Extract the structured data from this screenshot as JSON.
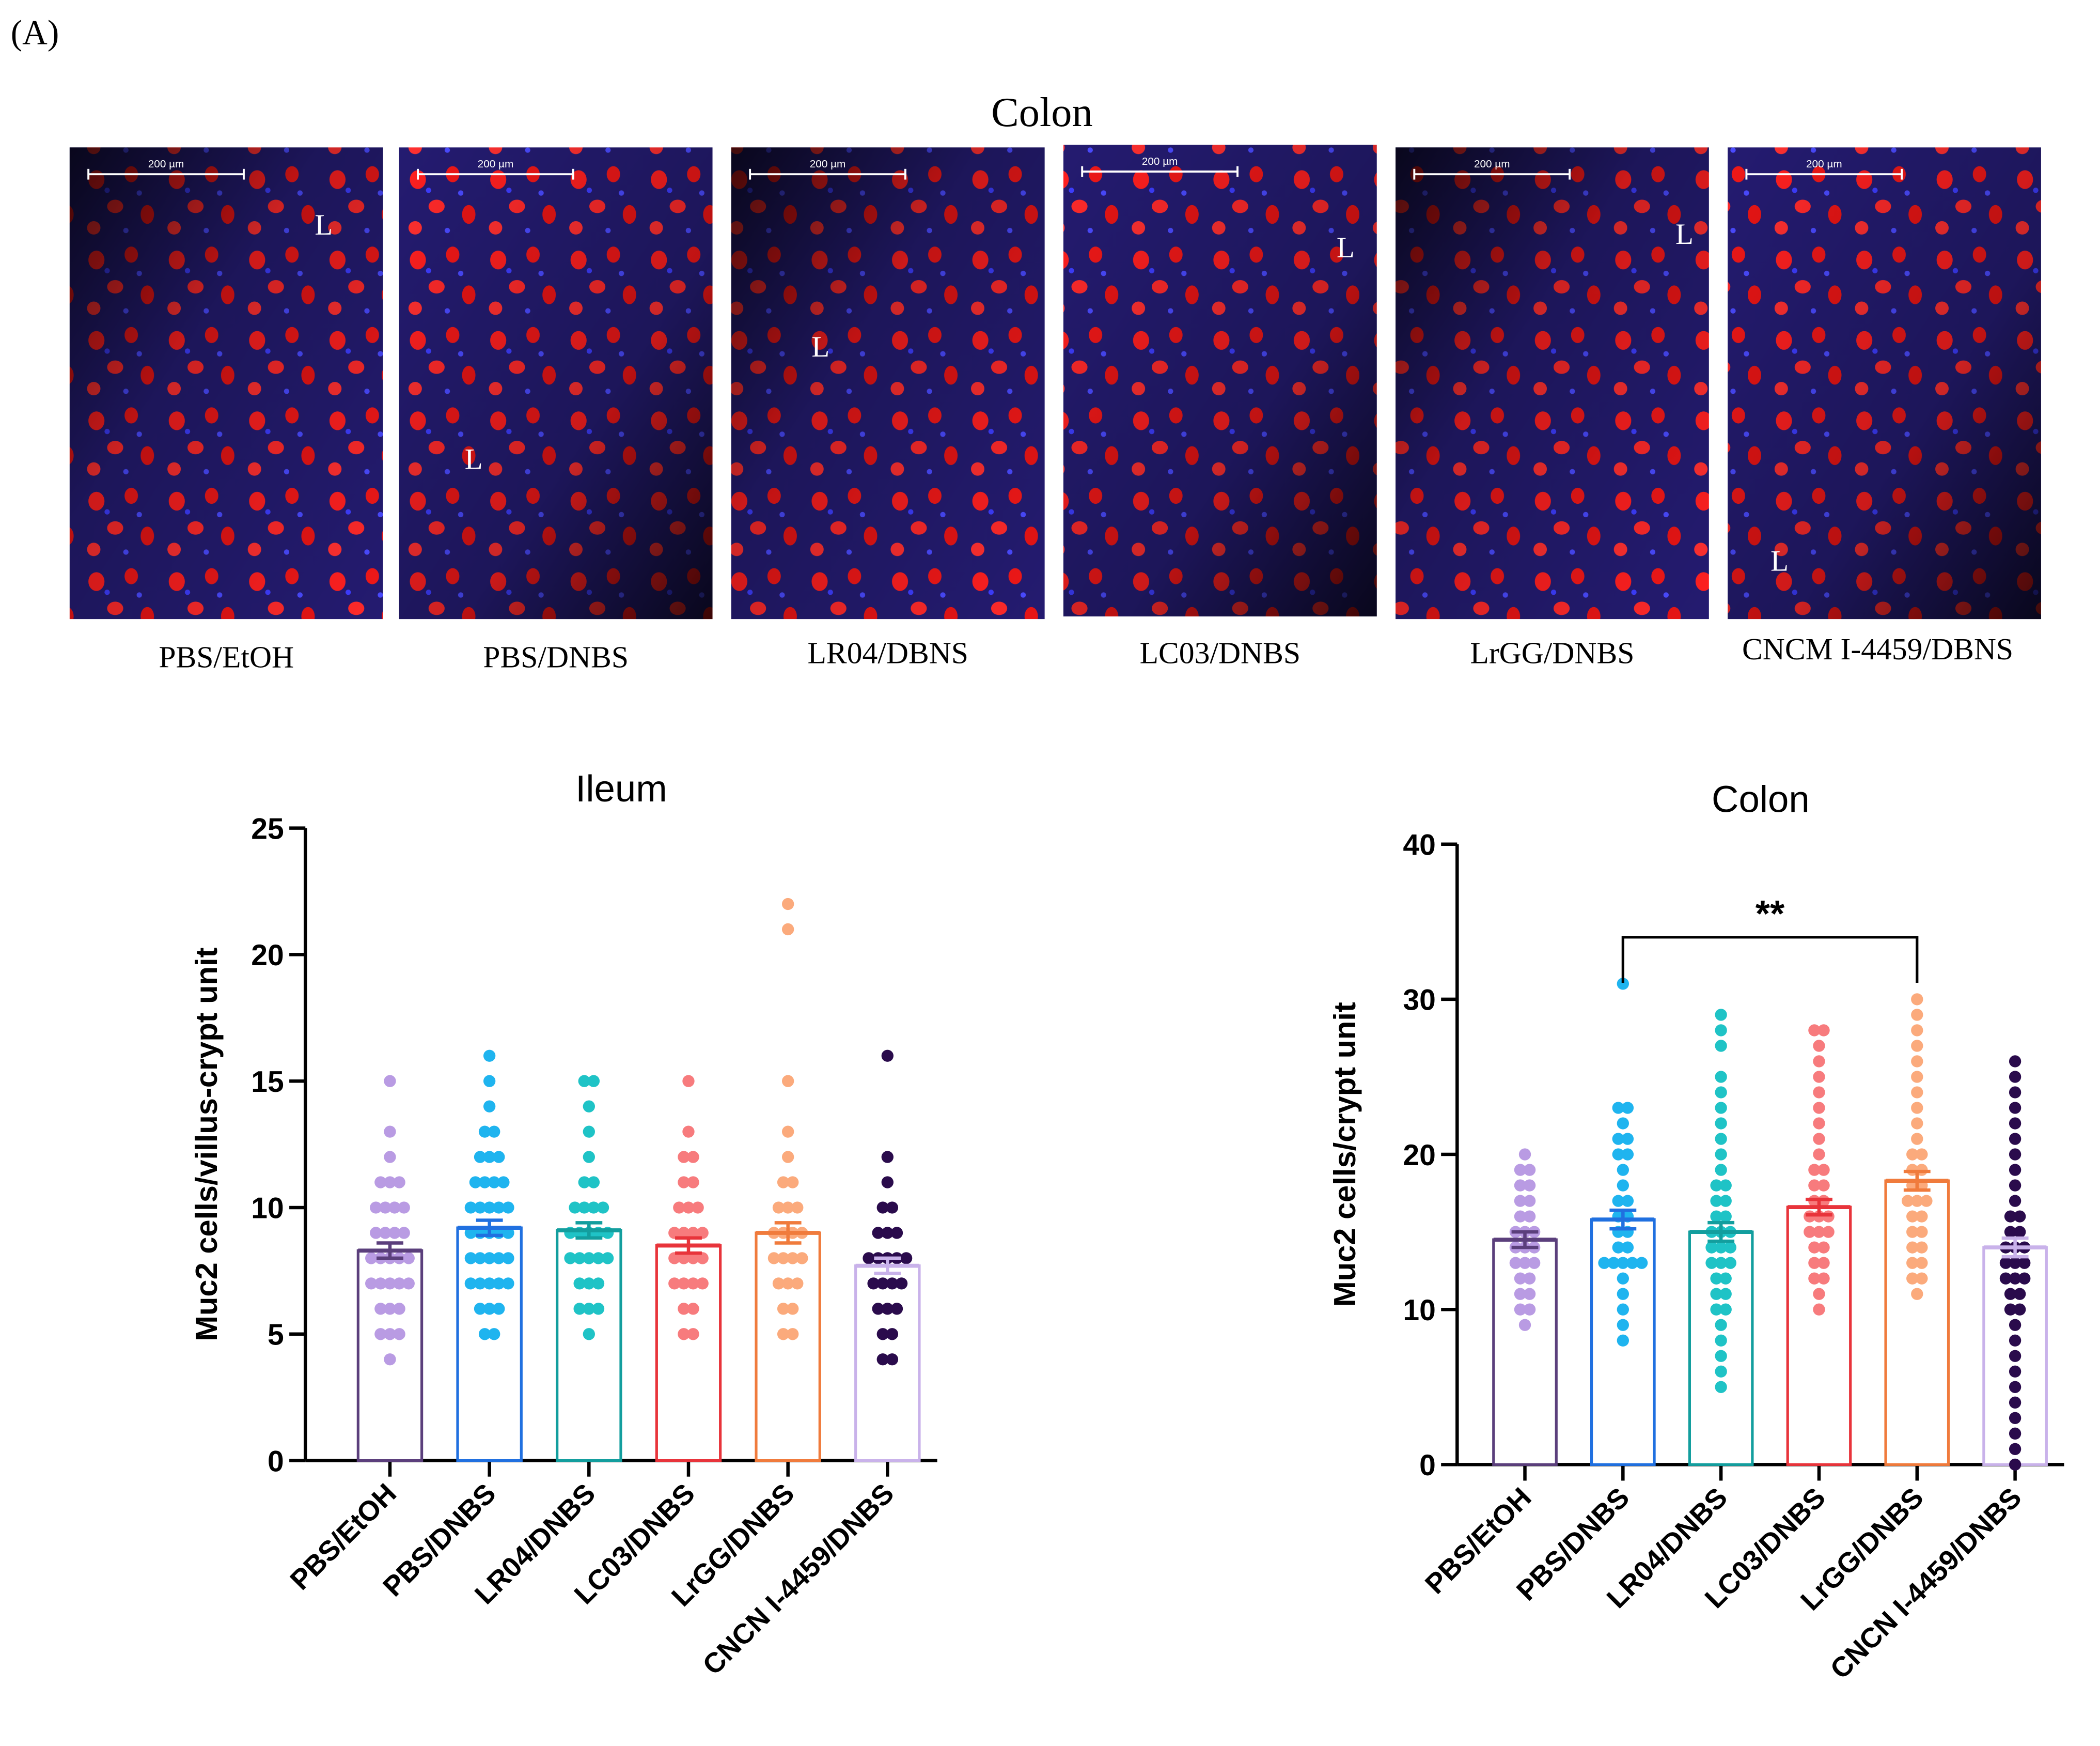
{
  "panel_label": "(A)",
  "micrographs": {
    "title": "Colon",
    "panels": [
      {
        "caption": "PBS/EtOH",
        "scale_bar": "200 µm",
        "lumen": "L"
      },
      {
        "caption": "PBS/DNBS",
        "scale_bar": "200 µm",
        "lumen": "L"
      },
      {
        "caption": "LR04/DBNS",
        "scale_bar": "200 µm",
        "lumen": "L"
      },
      {
        "caption": "LC03/DNBS",
        "scale_bar": "200 µm",
        "lumen": "L"
      },
      {
        "caption": "LrGG/DNBS",
        "scale_bar": "200 µm",
        "lumen": "L"
      },
      {
        "caption": "CNCM I-4459/DBNS",
        "scale_bar": "200 µm",
        "lumen": "L"
      }
    ]
  },
  "chart_data": [
    {
      "type": "bar",
      "title": "Ileum",
      "y_label": "Muc2 cells/villus-crypt unit",
      "categories": [
        "PBS/EtOH",
        "PBS/DNBS",
        "LR04/DNBS",
        "LC03/DNBS",
        "LrGG/DNBS",
        "CNCN I-4459/DNBS"
      ],
      "values": [
        8.3,
        9.2,
        9.1,
        8.5,
        9.0,
        7.7
      ],
      "errors": [
        0.3,
        0.3,
        0.3,
        0.3,
        0.4,
        0.3
      ],
      "points": [
        [
          4,
          5,
          5,
          5,
          6,
          6,
          6,
          7,
          7,
          7,
          7,
          7,
          8,
          8,
          8,
          8,
          8,
          9,
          9,
          9,
          9,
          10,
          10,
          10,
          10,
          11,
          11,
          11,
          12,
          13,
          15
        ],
        [
          5,
          5,
          6,
          6,
          6,
          7,
          7,
          7,
          7,
          7,
          8,
          8,
          8,
          8,
          8,
          9,
          9,
          9,
          9,
          9,
          10,
          10,
          10,
          10,
          10,
          11,
          11,
          11,
          11,
          12,
          12,
          12,
          13,
          13,
          14,
          15,
          16
        ],
        [
          5,
          6,
          6,
          6,
          7,
          7,
          7,
          8,
          8,
          8,
          8,
          8,
          9,
          9,
          9,
          9,
          9,
          10,
          10,
          10,
          10,
          11,
          11,
          12,
          13,
          14,
          15,
          15
        ],
        [
          5,
          5,
          6,
          6,
          7,
          7,
          7,
          7,
          8,
          8,
          8,
          8,
          9,
          9,
          9,
          9,
          10,
          10,
          10,
          11,
          11,
          12,
          12,
          13,
          15
        ],
        [
          5,
          5,
          6,
          6,
          7,
          7,
          7,
          8,
          8,
          8,
          8,
          9,
          9,
          9,
          9,
          10,
          10,
          10,
          11,
          11,
          12,
          13,
          15,
          21,
          22
        ],
        [
          4,
          4,
          5,
          5,
          6,
          6,
          6,
          7,
          7,
          7,
          7,
          8,
          8,
          8,
          8,
          8,
          9,
          9,
          9,
          10,
          10,
          11,
          12,
          16
        ]
      ],
      "point_colors": [
        "#b99be3",
        "#1fb4ef",
        "#1fc3c6",
        "#f77b7d",
        "#fbaa7c",
        "#2a0b4c"
      ],
      "edge_colors": [
        "#5b3f7c",
        "#2070e0",
        "#139e9e",
        "#e8343b",
        "#f07b3c",
        "#c9b2ea"
      ],
      "ylim": [
        0,
        25
      ],
      "yticks": [
        0,
        5,
        10,
        15,
        20,
        25
      ]
    },
    {
      "type": "bar",
      "title": "Colon",
      "y_label": "Muc2 cells/crypt unit",
      "categories": [
        "PBS/EtOH",
        "PBS/DNBS",
        "LR04/DNBS",
        "LC03/DNBS",
        "LrGG/DNBS",
        "CNCN I-4459/DNBS"
      ],
      "values": [
        14.5,
        15.8,
        15.0,
        16.6,
        18.3,
        14.0
      ],
      "errors": [
        0.5,
        0.6,
        0.6,
        0.5,
        0.6,
        0.6
      ],
      "points": [
        [
          9,
          10,
          10,
          11,
          11,
          12,
          12,
          13,
          13,
          13,
          14,
          14,
          14,
          15,
          15,
          15,
          16,
          16,
          17,
          17,
          18,
          18,
          19,
          19,
          20
        ],
        [
          8,
          9,
          10,
          11,
          12,
          13,
          13,
          13,
          13,
          13,
          14,
          14,
          15,
          15,
          16,
          16,
          17,
          17,
          18,
          19,
          20,
          20,
          21,
          21,
          22,
          23,
          23,
          31
        ],
        [
          5,
          6,
          7,
          8,
          9,
          10,
          10,
          11,
          11,
          12,
          12,
          13,
          13,
          13,
          14,
          14,
          14,
          15,
          15,
          15,
          16,
          16,
          17,
          17,
          18,
          18,
          19,
          20,
          21,
          22,
          23,
          24,
          25,
          27,
          28,
          29
        ],
        [
          10,
          11,
          12,
          12,
          13,
          13,
          14,
          14,
          15,
          15,
          15,
          16,
          16,
          16,
          17,
          17,
          18,
          18,
          19,
          19,
          20,
          21,
          22,
          23,
          24,
          25,
          26,
          27,
          28,
          28
        ],
        [
          11,
          12,
          12,
          13,
          13,
          14,
          14,
          15,
          15,
          16,
          16,
          17,
          17,
          17,
          18,
          18,
          19,
          19,
          20,
          20,
          21,
          22,
          23,
          24,
          25,
          26,
          27,
          28,
          29,
          30
        ],
        [
          0,
          1,
          2,
          3,
          4,
          5,
          6,
          7,
          8,
          9,
          10,
          10,
          11,
          11,
          12,
          12,
          12,
          13,
          13,
          13,
          14,
          14,
          14,
          15,
          15,
          16,
          16,
          17,
          18,
          19,
          20,
          21,
          22,
          23,
          24,
          25,
          26
        ]
      ],
      "point_colors": [
        "#b99be3",
        "#1fb4ef",
        "#1fc3c6",
        "#f77b7d",
        "#fbaa7c",
        "#2a0b4c"
      ],
      "edge_colors": [
        "#5b3f7c",
        "#2070e0",
        "#139e9e",
        "#e8343b",
        "#f07b3c",
        "#c9b2ea"
      ],
      "ylim": [
        0,
        40
      ],
      "yticks": [
        0,
        10,
        20,
        30,
        40
      ],
      "annotations": [
        {
          "text": "**",
          "from": 1,
          "to": 4,
          "y": 34
        }
      ]
    }
  ]
}
